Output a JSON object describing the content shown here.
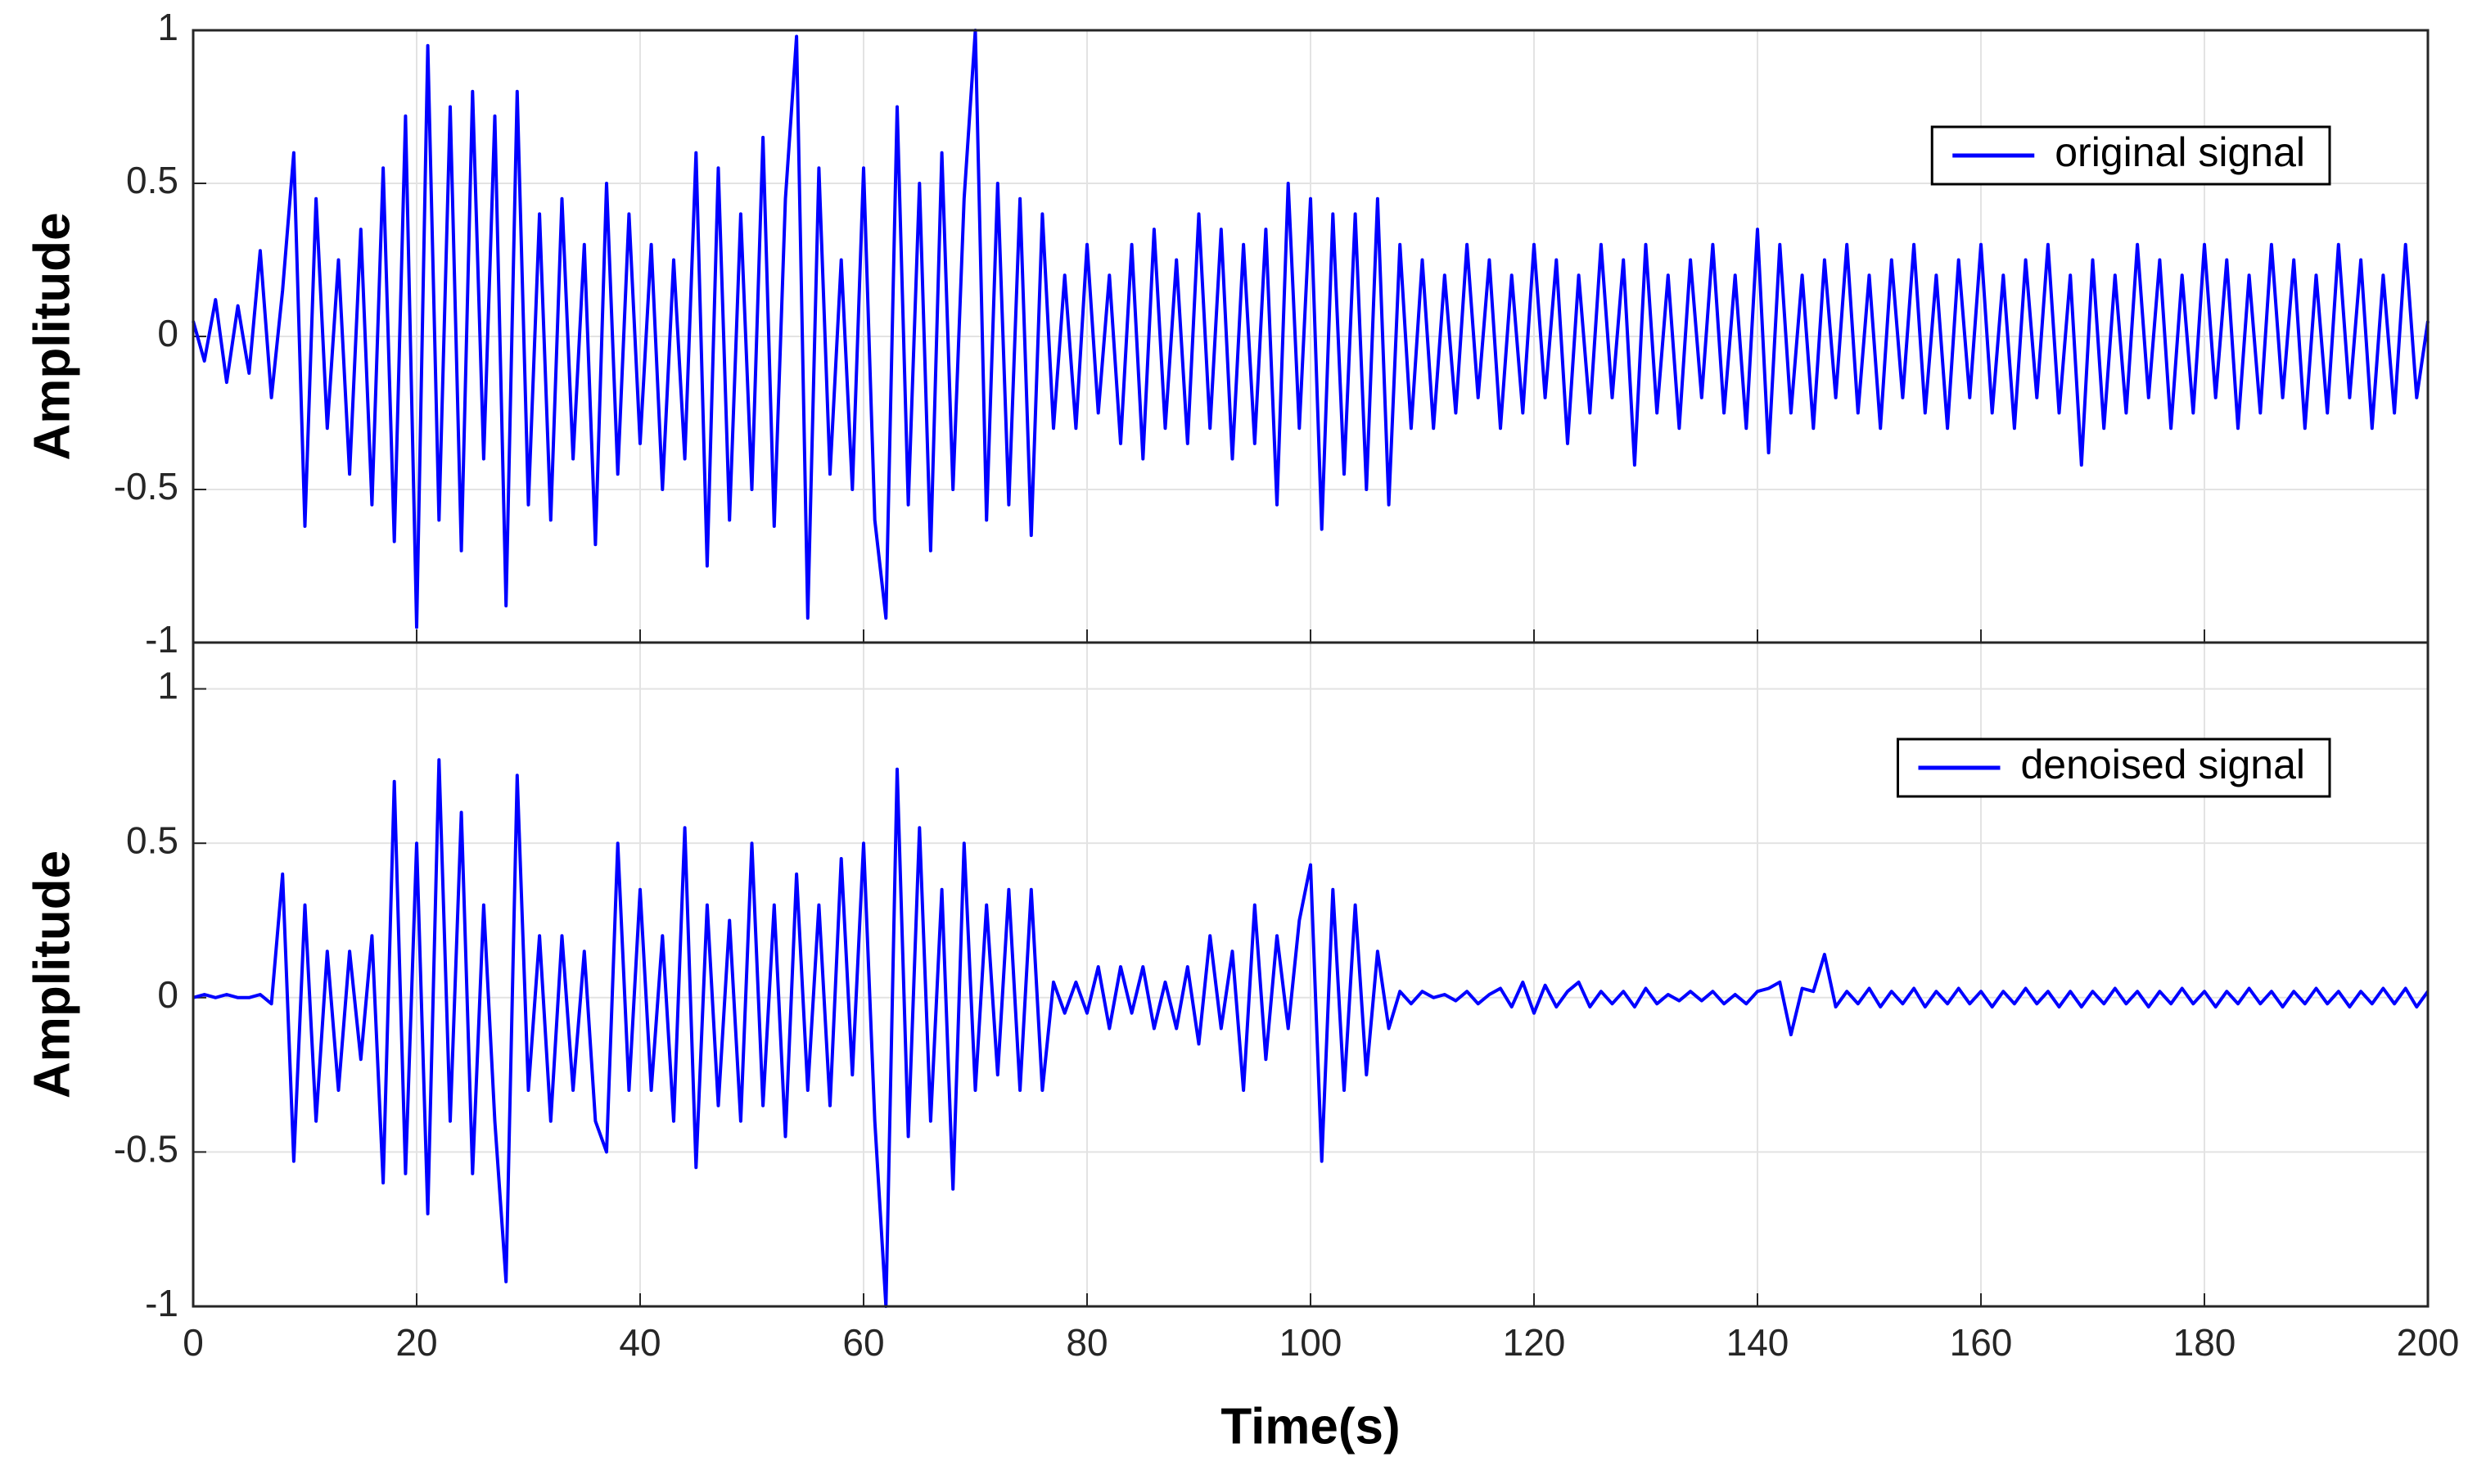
{
  "chart_data": [
    {
      "type": "line",
      "ylabel": "Amplitude",
      "x": [
        0,
        1,
        2,
        3,
        4,
        5,
        6,
        7,
        8,
        9,
        10,
        11,
        12,
        13,
        14,
        15,
        16,
        17,
        18,
        19,
        20,
        21,
        22,
        23,
        24,
        25,
        26,
        27,
        28,
        29,
        30,
        31,
        32,
        33,
        34,
        35,
        36,
        37,
        38,
        39,
        40,
        41,
        42,
        43,
        44,
        45,
        46,
        47,
        48,
        49,
        50,
        51,
        52,
        53,
        54,
        55,
        56,
        57,
        58,
        59,
        60,
        61,
        62,
        63,
        64,
        65,
        66,
        67,
        68,
        69,
        70,
        71,
        72,
        73,
        74,
        75,
        76,
        77,
        78,
        79,
        80,
        81,
        82,
        83,
        84,
        85,
        86,
        87,
        88,
        89,
        90,
        91,
        92,
        93,
        94,
        95,
        96,
        97,
        98,
        99,
        100,
        101,
        102,
        103,
        104,
        105,
        106,
        107,
        108,
        109,
        110,
        111,
        112,
        113,
        114,
        115,
        116,
        117,
        118,
        119,
        120,
        121,
        122,
        123,
        124,
        125,
        126,
        127,
        128,
        129,
        130,
        131,
        132,
        133,
        134,
        135,
        136,
        137,
        138,
        139,
        140,
        141,
        142,
        143,
        144,
        145,
        146,
        147,
        148,
        149,
        150,
        151,
        152,
        153,
        154,
        155,
        156,
        157,
        158,
        159,
        160,
        161,
        162,
        163,
        164,
        165,
        166,
        167,
        168,
        169,
        170,
        171,
        172,
        173,
        174,
        175,
        176,
        177,
        178,
        179,
        180,
        181,
        182,
        183,
        184,
        185,
        186,
        187,
        188,
        189,
        190,
        191,
        192,
        193,
        194,
        195,
        196,
        197,
        198,
        199,
        200
      ],
      "series": [
        {
          "name": "original signal",
          "color": "#0000ff",
          "values": [
            0.05,
            -0.08,
            0.12,
            -0.15,
            0.1,
            -0.12,
            0.28,
            -0.2,
            0.15,
            0.6,
            -0.62,
            0.45,
            -0.3,
            0.25,
            -0.45,
            0.35,
            -0.55,
            0.55,
            -0.67,
            0.72,
            -0.95,
            0.95,
            -0.6,
            0.75,
            -0.7,
            0.8,
            -0.4,
            0.72,
            -0.88,
            0.8,
            -0.55,
            0.4,
            -0.6,
            0.45,
            -0.4,
            0.3,
            -0.68,
            0.5,
            -0.45,
            0.4,
            -0.35,
            0.3,
            -0.5,
            0.25,
            -0.4,
            0.6,
            -0.75,
            0.55,
            -0.6,
            0.4,
            -0.5,
            0.65,
            -0.62,
            0.45,
            0.98,
            -0.92,
            0.55,
            -0.45,
            0.25,
            -0.5,
            0.55,
            -0.6,
            -0.92,
            0.75,
            -0.55,
            0.5,
            -0.7,
            0.6,
            -0.5,
            0.45,
            1.0,
            -0.6,
            0.5,
            -0.55,
            0.45,
            -0.65,
            0.4,
            -0.3,
            0.2,
            -0.3,
            0.3,
            -0.25,
            0.2,
            -0.35,
            0.3,
            -0.4,
            0.35,
            -0.3,
            0.25,
            -0.35,
            0.4,
            -0.3,
            0.35,
            -0.4,
            0.3,
            -0.35,
            0.35,
            -0.55,
            0.5,
            -0.3,
            0.45,
            -0.63,
            0.4,
            -0.45,
            0.4,
            -0.5,
            0.45,
            -0.55,
            0.3,
            -0.3,
            0.25,
            -0.3,
            0.2,
            -0.25,
            0.3,
            -0.2,
            0.25,
            -0.3,
            0.2,
            -0.25,
            0.3,
            -0.2,
            0.25,
            -0.35,
            0.2,
            -0.25,
            0.3,
            -0.2,
            0.25,
            -0.42,
            0.3,
            -0.25,
            0.2,
            -0.3,
            0.25,
            -0.2,
            0.3,
            -0.25,
            0.2,
            -0.3,
            0.35,
            -0.38,
            0.3,
            -0.25,
            0.2,
            -0.3,
            0.25,
            -0.2,
            0.3,
            -0.25,
            0.2,
            -0.3,
            0.25,
            -0.2,
            0.3,
            -0.25,
            0.2,
            -0.3,
            0.25,
            -0.2,
            0.3,
            -0.25,
            0.2,
            -0.3,
            0.25,
            -0.2,
            0.3,
            -0.25,
            0.2,
            -0.42,
            0.25,
            -0.3,
            0.2,
            -0.25,
            0.3,
            -0.2,
            0.25,
            -0.3,
            0.2,
            -0.25,
            0.3,
            -0.2,
            0.25,
            -0.3,
            0.2,
            -0.25,
            0.3,
            -0.2,
            0.25,
            -0.3,
            0.2,
            -0.25,
            0.3,
            -0.2,
            0.25,
            -0.3,
            0.2,
            -0.25,
            0.3,
            -0.2,
            0.05
          ]
        }
      ],
      "xlim": [
        0,
        200
      ],
      "ylim": [
        -1,
        1
      ],
      "xticks": [
        0,
        20,
        40,
        60,
        80,
        100,
        120,
        140,
        160,
        180,
        200
      ],
      "yticks": [
        -1,
        -0.5,
        0,
        0.5,
        1
      ],
      "grid": true,
      "legend": "upper right"
    },
    {
      "type": "line",
      "ylabel": "Amplitude",
      "xlabel": "Time(s)",
      "x": [
        0,
        1,
        2,
        3,
        4,
        5,
        6,
        7,
        8,
        9,
        10,
        11,
        12,
        13,
        14,
        15,
        16,
        17,
        18,
        19,
        20,
        21,
        22,
        23,
        24,
        25,
        26,
        27,
        28,
        29,
        30,
        31,
        32,
        33,
        34,
        35,
        36,
        37,
        38,
        39,
        40,
        41,
        42,
        43,
        44,
        45,
        46,
        47,
        48,
        49,
        50,
        51,
        52,
        53,
        54,
        55,
        56,
        57,
        58,
        59,
        60,
        61,
        62,
        63,
        64,
        65,
        66,
        67,
        68,
        69,
        70,
        71,
        72,
        73,
        74,
        75,
        76,
        77,
        78,
        79,
        80,
        81,
        82,
        83,
        84,
        85,
        86,
        87,
        88,
        89,
        90,
        91,
        92,
        93,
        94,
        95,
        96,
        97,
        98,
        99,
        100,
        101,
        102,
        103,
        104,
        105,
        106,
        107,
        108,
        109,
        110,
        111,
        112,
        113,
        114,
        115,
        116,
        117,
        118,
        119,
        120,
        121,
        122,
        123,
        124,
        125,
        126,
        127,
        128,
        129,
        130,
        131,
        132,
        133,
        134,
        135,
        136,
        137,
        138,
        139,
        140,
        141,
        142,
        143,
        144,
        145,
        146,
        147,
        148,
        149,
        150,
        151,
        152,
        153,
        154,
        155,
        156,
        157,
        158,
        159,
        160,
        161,
        162,
        163,
        164,
        165,
        166,
        167,
        168,
        169,
        170,
        171,
        172,
        173,
        174,
        175,
        176,
        177,
        178,
        179,
        180,
        181,
        182,
        183,
        184,
        185,
        186,
        187,
        188,
        189,
        190,
        191,
        192,
        193,
        194,
        195,
        196,
        197,
        198,
        199,
        200
      ],
      "series": [
        {
          "name": "denoised signal",
          "color": "#0000ff",
          "values": [
            0,
            0.01,
            0,
            0.01,
            0,
            0,
            0.01,
            -0.02,
            0.4,
            -0.53,
            0.3,
            -0.4,
            0.15,
            -0.3,
            0.15,
            -0.2,
            0.2,
            -0.6,
            0.7,
            -0.57,
            0.5,
            -0.7,
            0.77,
            -0.4,
            0.6,
            -0.57,
            0.3,
            -0.4,
            -0.92,
            0.72,
            -0.3,
            0.2,
            -0.4,
            0.2,
            -0.3,
            0.15,
            -0.4,
            -0.5,
            0.5,
            -0.3,
            0.35,
            -0.3,
            0.2,
            -0.4,
            0.55,
            -0.55,
            0.3,
            -0.35,
            0.25,
            -0.4,
            0.5,
            -0.35,
            0.3,
            -0.45,
            0.4,
            -0.3,
            0.3,
            -0.35,
            0.45,
            -0.25,
            0.5,
            -0.4,
            -1.0,
            0.74,
            -0.45,
            0.55,
            -0.4,
            0.35,
            -0.62,
            0.5,
            -0.3,
            0.3,
            -0.25,
            0.35,
            -0.3,
            0.35,
            -0.3,
            0.05,
            -0.05,
            0.05,
            -0.05,
            0.1,
            -0.1,
            0.1,
            -0.05,
            0.1,
            -0.1,
            0.05,
            -0.1,
            0.1,
            -0.15,
            0.2,
            -0.1,
            0.15,
            -0.3,
            0.3,
            -0.2,
            0.2,
            -0.1,
            0.25,
            0.43,
            -0.53,
            0.35,
            -0.3,
            0.3,
            -0.25,
            0.15,
            -0.1,
            0.02,
            -0.02,
            0.02,
            0,
            0.01,
            -0.01,
            0.02,
            -0.02,
            0.01,
            0.03,
            -0.03,
            0.05,
            -0.05,
            0.04,
            -0.03,
            0.02,
            0.05,
            -0.03,
            0.02,
            -0.02,
            0.02,
            -0.03,
            0.03,
            -0.02,
            0.01,
            -0.01,
            0.02,
            -0.01,
            0.02,
            -0.02,
            0.01,
            -0.02,
            0.02,
            0.03,
            0.05,
            -0.12,
            0.03,
            0.02,
            0.14,
            -0.03,
            0.02,
            -0.02,
            0.03,
            -0.03,
            0.02,
            -0.02,
            0.03,
            -0.03,
            0.02,
            -0.02,
            0.03,
            -0.02,
            0.02,
            -0.03,
            0.02,
            -0.02,
            0.03,
            -0.02,
            0.02,
            -0.03,
            0.02,
            -0.03,
            0.02,
            -0.02,
            0.03,
            -0.02,
            0.02,
            -0.03,
            0.02,
            -0.02,
            0.03,
            -0.02,
            0.02,
            -0.03,
            0.02,
            -0.02,
            0.03,
            -0.02,
            0.02,
            -0.03,
            0.02,
            -0.02,
            0.03,
            -0.02,
            0.02,
            -0.03,
            0.02,
            -0.02,
            0.03,
            -0.02,
            0.03,
            -0.03,
            0.02
          ]
        }
      ],
      "xlim": [
        0,
        200
      ],
      "ylim": [
        -1,
        1.15
      ],
      "xticks": [
        0,
        20,
        40,
        60,
        80,
        100,
        120,
        140,
        160,
        180,
        200
      ],
      "yticks": [
        -1,
        -0.5,
        0,
        0.5,
        1
      ],
      "grid": true,
      "legend": "upper right"
    }
  ]
}
